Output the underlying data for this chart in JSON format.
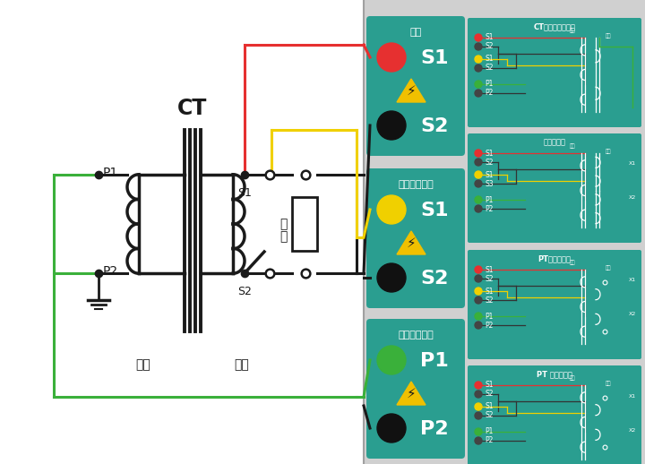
{
  "bg_color": "#ffffff",
  "teal_color": "#2a9e90",
  "line_black": "#1a1a1a",
  "line_red": "#e63030",
  "line_yellow": "#f0d000",
  "line_green": "#3ab03a",
  "panel_titles": [
    "CT励磁变比接线图",
    "负荷接线图",
    "PT励磁接线图",
    "PT 变比接线图"
  ],
  "box1_title": "输出",
  "box2_title": "输出电压测量",
  "box3_title": "感应电压测量",
  "label_yici": "一次",
  "label_erci": "二次",
  "label_CT": "CT",
  "label_fuzai_1": "负",
  "label_fuzai_2": "载",
  "label_S1": "S1",
  "label_S2": "S2",
  "label_P1": "P1",
  "label_P2": "P2"
}
